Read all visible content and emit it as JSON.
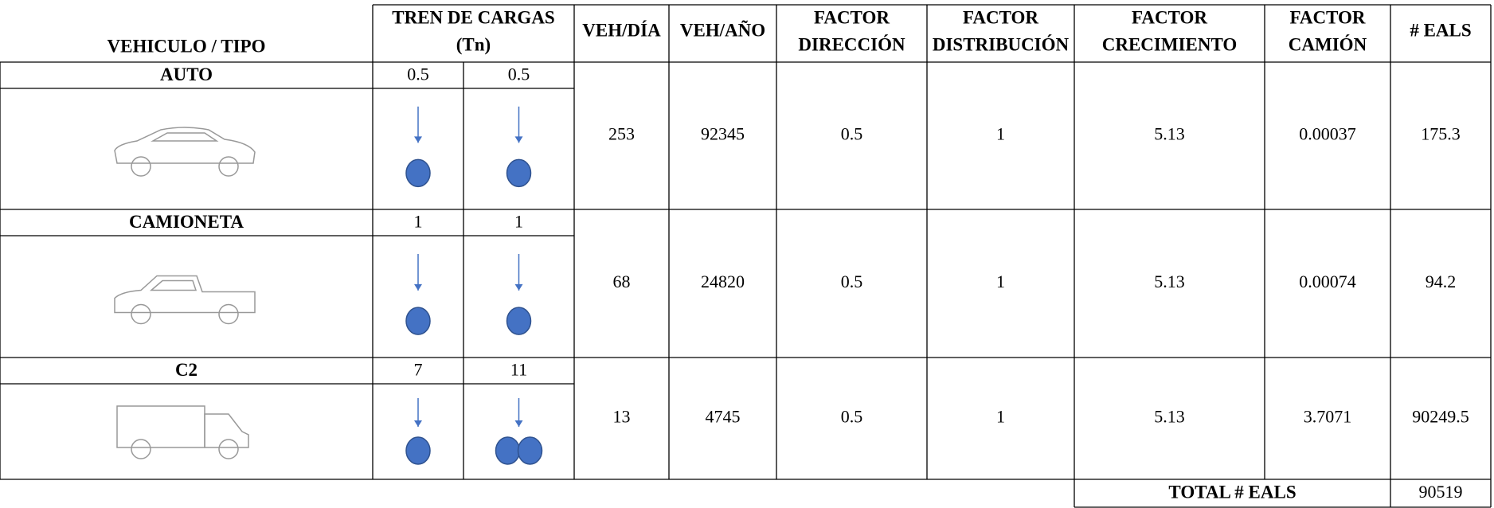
{
  "table": {
    "headers": [
      [
        "VEHICULO / TIPO"
      ],
      [
        "TREN DE CARGAS",
        "(Tn)"
      ],
      [
        "VEH/DÍA"
      ],
      [
        "VEH/AÑO"
      ],
      [
        "FACTOR",
        "DIRECCIÓN"
      ],
      [
        "FACTOR",
        "DISTRIBUCIÓN"
      ],
      [
        "FACTOR",
        "CRECIMIENTO"
      ],
      [
        "FACTOR",
        "CAMIÓN"
      ],
      [
        "# EALS"
      ]
    ],
    "rows": [
      {
        "vehicle": "AUTO",
        "loads": [
          0.5,
          0.5
        ],
        "values": [
          253,
          92345,
          0.5,
          1,
          5.13,
          0.00037,
          175.3
        ]
      },
      {
        "vehicle": "CAMIONETA",
        "loads": [
          1,
          1
        ],
        "values": [
          68,
          24820,
          0.5,
          1,
          5.13,
          0.00074,
          94.2
        ]
      },
      {
        "vehicle": "C2",
        "loads": [
          7,
          11
        ],
        "values": [
          13,
          4745,
          0.5,
          1,
          5.13,
          3.7071,
          90249.5
        ]
      }
    ],
    "total_label": "TOTAL # EALS",
    "total": 90519
  }
}
